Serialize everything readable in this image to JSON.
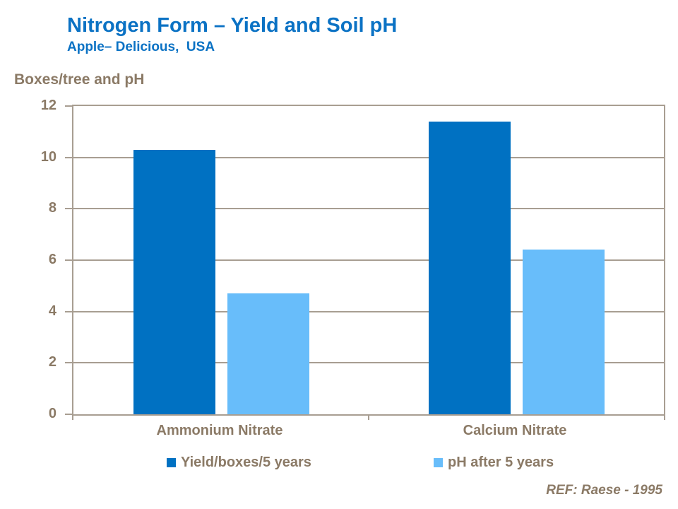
{
  "slide": {
    "title": "Nitrogen Form – Yield and Soil pH",
    "subtitle": "Apple– Delicious,  USA",
    "ref_note": "REF: Raese - 1995"
  },
  "chart_data": {
    "type": "bar",
    "title": "Nitrogen Form – Yield and Soil pH",
    "subtitle": "Apple– Delicious, USA",
    "units_label": "Boxes/tree and pH",
    "categories": [
      "Ammonium Nitrate",
      "Calcium Nitrate"
    ],
    "series": [
      {
        "name": "Yield/boxes/5 years",
        "color": "#0071C2",
        "values": [
          10.3,
          11.4
        ]
      },
      {
        "name": "pH after 5 years",
        "color": "#68BDFA",
        "values": [
          4.7,
          6.4
        ]
      }
    ],
    "ylim": [
      0,
      12
    ],
    "yticks": [
      0,
      2,
      4,
      6,
      8,
      10,
      12
    ],
    "grid": true,
    "legend_position": "bottom",
    "colors": {
      "bar_dark_blue": "#0071C2",
      "bar_light_blue": "#68BDFA",
      "title_blue": "#0B72C4",
      "text_brown": "#8B7A66",
      "grid_taupe": "#A89E92",
      "background": "#FFFFFF"
    }
  }
}
